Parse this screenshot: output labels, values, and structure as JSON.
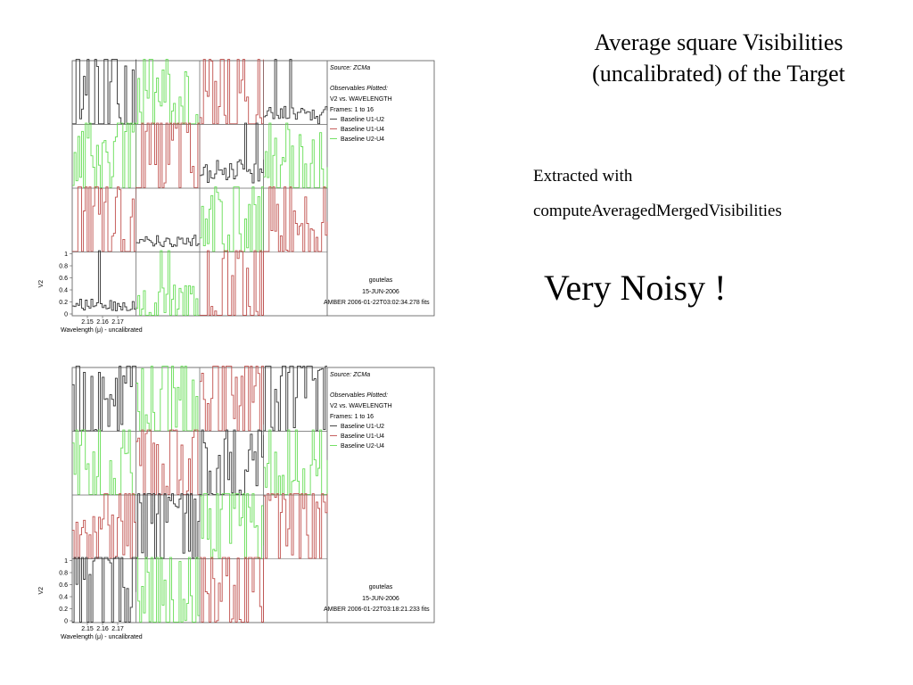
{
  "slide": {
    "title_line1": "Average square Visibilities",
    "title_line2": "(uncalibrated) of the Target",
    "extracted_label": "Extracted with",
    "method_name": "computeAveragedMergedVisibilities",
    "verdict": "Very Noisy !"
  },
  "colors": {
    "baseline_u1_u2": "#333333",
    "baseline_u1_u4": "#c0504d",
    "baseline_u2_u4": "#66dd55"
  },
  "chart_data": [
    {
      "type": "line",
      "title": "",
      "xlabel": "Wavelength (μ) - uncalibrated",
      "ylabel": "V2",
      "x_ticks": [
        "2.15",
        "2.16",
        "2.17"
      ],
      "y_ticks": [
        "0",
        "0.2",
        "0.4",
        "0.6",
        "0.8",
        "1"
      ],
      "ylim": [
        0,
        1
      ],
      "grid": {
        "rows": 4,
        "cols": 4,
        "empty_panels": [
          15
        ]
      },
      "panel_colors": [
        "u1u2",
        "u2u4",
        "u1u4",
        "u1u2",
        "u2u4",
        "u1u4",
        "u1u2",
        "u2u4",
        "u1u4",
        "u1u2",
        "u2u4",
        "u1u4",
        "u1u2",
        "u2u4",
        "u1u4"
      ],
      "panel_noise": [
        0.95,
        0.9,
        0.9,
        0.12,
        0.7,
        0.9,
        0.2,
        0.6,
        0.95,
        0.1,
        0.85,
        0.8,
        0.1,
        0.4,
        0.85
      ],
      "panel_level": [
        0.5,
        0.4,
        0.5,
        0.15,
        0.3,
        0.45,
        0.25,
        0.35,
        0.45,
        0.15,
        0.4,
        0.4,
        0.15,
        0.15,
        0.3
      ],
      "legend": {
        "source": "Source: ZCMa",
        "observables_label": "Observables Plotted:",
        "observables_value": "V2 vs. WAVELENGTH",
        "frames": "Frames: 1 to 16",
        "entries": [
          {
            "label": "Baseline U1-U2",
            "color": "baseline_u1_u2"
          },
          {
            "label": "Baseline U1-U4",
            "color": "baseline_u1_u4"
          },
          {
            "label": "Baseline U2-U4",
            "color": "baseline_u2_u4"
          }
        ]
      },
      "footer": {
        "user": "goutelas",
        "date": "15-JUN-2006",
        "file": "AMBER 2006-01-22T03:02:34.278 fits"
      }
    },
    {
      "type": "line",
      "title": "",
      "xlabel": "Wavelength (μ) - uncalibrated",
      "ylabel": "V2",
      "x_ticks": [
        "2.15",
        "2.16",
        "2.17"
      ],
      "y_ticks": [
        "0",
        "0.2",
        "0.4",
        "0.6",
        "0.8",
        "1"
      ],
      "ylim": [
        0,
        1
      ],
      "grid": {
        "rows": 4,
        "cols": 4,
        "empty_panels": [
          15
        ]
      },
      "panel_colors": [
        "u1u2",
        "u2u4",
        "u1u4",
        "u1u2",
        "u2u4",
        "u1u4",
        "u1u2",
        "u2u4",
        "u1u4",
        "u1u2",
        "u2u4",
        "u1u4",
        "u1u2",
        "u2u4",
        "u1u4"
      ],
      "panel_noise": [
        0.95,
        0.95,
        0.95,
        0.7,
        0.9,
        0.9,
        0.7,
        0.5,
        0.5,
        0.95,
        0.95,
        0.9,
        0.95,
        0.9,
        0.95
      ],
      "panel_level": [
        0.5,
        0.5,
        0.5,
        0.6,
        0.5,
        0.5,
        0.4,
        0.2,
        0.2,
        0.6,
        0.5,
        0.5,
        0.6,
        0.5,
        0.6
      ],
      "legend": {
        "source": "Source: ZCMa",
        "observables_label": "Observables Plotted:",
        "observables_value": "V2 vs. WAVELENGTH",
        "frames": "Frames: 1 to 16",
        "entries": [
          {
            "label": "Baseline U1-U2",
            "color": "baseline_u1_u2"
          },
          {
            "label": "Baseline U1-U4",
            "color": "baseline_u1_u4"
          },
          {
            "label": "Baseline U2-U4",
            "color": "baseline_u2_u4"
          }
        ]
      },
      "footer": {
        "user": "goutelas",
        "date": "15-JUN-2006",
        "file": "AMBER 2006-01-22T03:18:21.233 fits"
      }
    }
  ]
}
